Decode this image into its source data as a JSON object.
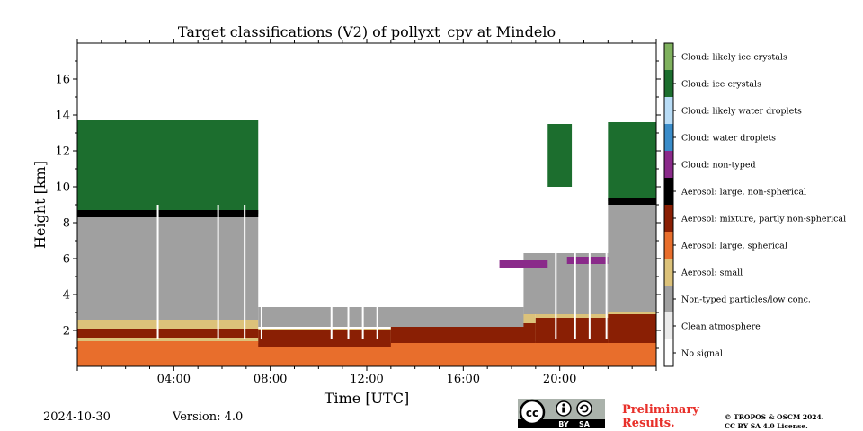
{
  "chart_data": {
    "type": "heatmap",
    "title": "Target classifications (V2) of pollyxt_cpv at Mindelo",
    "xlabel": "Time [UTC]",
    "ylabel": "Height [km]",
    "xlim_hours": [
      0,
      24
    ],
    "ylim_km": [
      0,
      18
    ],
    "x_ticks": [
      "04:00",
      "08:00",
      "12:00",
      "16:00",
      "20:00"
    ],
    "x_tick_hours": [
      4,
      8,
      12,
      16,
      20
    ],
    "y_ticks": [
      "2",
      "4",
      "6",
      "8",
      "10",
      "12",
      "14",
      "16"
    ],
    "y_tick_values": [
      2,
      4,
      6,
      8,
      10,
      12,
      14,
      16
    ],
    "legend_placement": "right colorbar",
    "classes": [
      {
        "label": "Cloud: likely ice crystals",
        "color": "#7fb15e"
      },
      {
        "label": "Cloud: ice crystals",
        "color": "#1c6e2e"
      },
      {
        "label": "Cloud: likely water droplets",
        "color": "#b8dcf6"
      },
      {
        "label": "Cloud: water droplets",
        "color": "#3a8cc9"
      },
      {
        "label": "Cloud: non-typed",
        "color": "#8a2a8a"
      },
      {
        "label": "Aerosol: large, non-spherical",
        "color": "#000000"
      },
      {
        "label": "Aerosol: mixture, partly non-spherical",
        "color": "#8a1f04"
      },
      {
        "label": "Aerosol: large, spherical",
        "color": "#e86e2c"
      },
      {
        "label": "Aerosol: small",
        "color": "#dcc27a"
      },
      {
        "label": "Non-typed particles/low conc.",
        "color": "#a0a0a0"
      },
      {
        "label": "Clean atmosphere",
        "color": "#ebebeb"
      },
      {
        "label": "No signal",
        "color": "#ffffff"
      }
    ],
    "layers": [
      {
        "class": "Aerosol: large, spherical",
        "segments": [
          [
            0,
            24,
            0,
            1.4
          ]
        ]
      },
      {
        "class": "Aerosol: small",
        "segments": [
          [
            0,
            7.5,
            1.4,
            2.6
          ],
          [
            7.5,
            13,
            1.3,
            2.1
          ],
          [
            13,
            19,
            1.4,
            2.9
          ],
          [
            19,
            24,
            1.4,
            3.0
          ]
        ]
      },
      {
        "class": "Aerosol: mixture, partly non-spherical",
        "segments": [
          [
            0,
            7.5,
            1.6,
            2.1
          ],
          [
            7.5,
            13,
            1.1,
            2.0
          ],
          [
            13,
            19,
            1.3,
            2.4
          ],
          [
            19,
            22,
            1.3,
            2.7
          ],
          [
            22,
            24,
            1.3,
            2.9
          ]
        ]
      },
      {
        "class": "Non-typed particles/low conc.",
        "segments": [
          [
            0,
            7.5,
            2.6,
            8.5
          ],
          [
            7.5,
            18.5,
            2.2,
            3.3
          ],
          [
            18.5,
            22,
            2.9,
            6.3
          ],
          [
            22,
            24,
            3.0,
            9.2
          ]
        ]
      },
      {
        "class": "Cloud: ice crystals",
        "segments": [
          [
            0,
            7.5,
            8.5,
            13.7
          ],
          [
            19.5,
            20.5,
            10.0,
            13.5
          ],
          [
            22,
            24,
            9.2,
            13.6
          ]
        ]
      },
      {
        "class": "Aerosol: large, non-spherical",
        "segments": [
          [
            0,
            7.5,
            8.3,
            8.7
          ],
          [
            22,
            24,
            9.0,
            9.4
          ]
        ]
      },
      {
        "class": "Cloud: non-typed",
        "segments": [
          [
            17.5,
            19.5,
            5.5,
            5.9
          ],
          [
            20.3,
            22,
            5.7,
            6.1
          ]
        ]
      }
    ]
  },
  "footer": {
    "date": "2024-10-30",
    "version": "Version: 4.0",
    "preliminary_line1": "Preliminary",
    "preliminary_line2": "Results.",
    "copyright_line1": "© TROPOS & OSCM 2024.",
    "copyright_line2": "CC BY SA 4.0 License.",
    "cc_by_label": "BY",
    "cc_sa_label": "SA"
  }
}
